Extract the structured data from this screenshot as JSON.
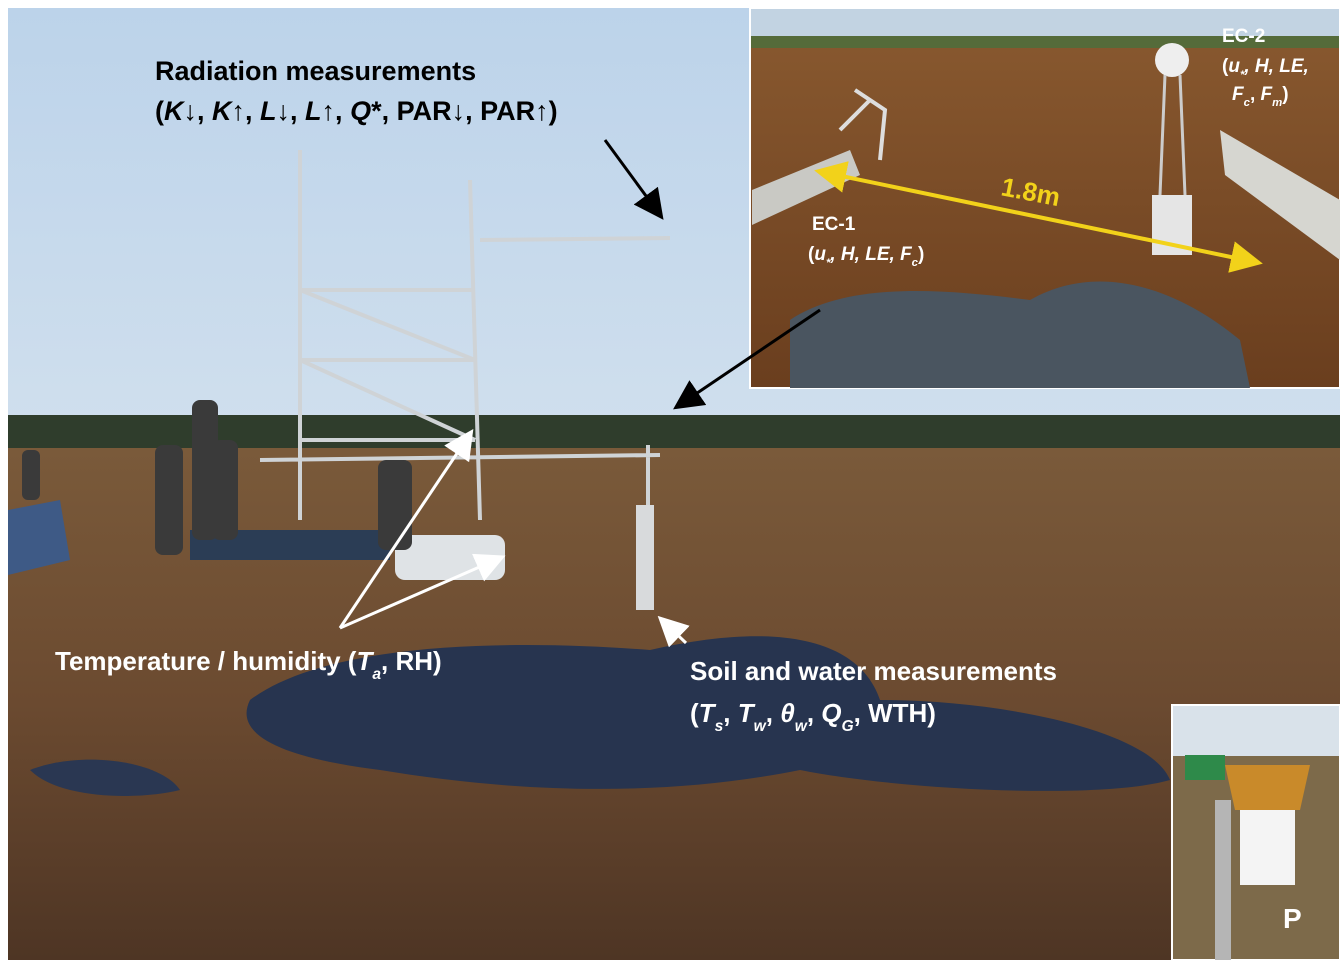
{
  "radiation": {
    "title": "Radiation measurements",
    "detail": [
      "(",
      "K",
      "↓, ",
      "K",
      "↑, ",
      "L",
      "↓, ",
      "L",
      "↑, ",
      "Q",
      "*, PAR↓, PAR↑)"
    ]
  },
  "temperature": [
    "Temperature / humidity (",
    "T",
    "a",
    ", RH)"
  ],
  "soil": {
    "title": "Soil and water measurements",
    "detail": [
      "(",
      "T",
      "s",
      ", ",
      "T",
      "w",
      ", ",
      "θ",
      "w",
      ", ",
      "Q",
      "G",
      ", WTH)"
    ]
  },
  "ec1": {
    "title": "EC-1",
    "detail": [
      "(",
      "u",
      "*",
      ", H, LE, ",
      "F",
      "c",
      ")"
    ]
  },
  "ec2": {
    "title": "EC-2",
    "line2": [
      "(",
      "u",
      "*",
      ", H, LE,"
    ],
    "line3": [
      "F",
      "c",
      ", ",
      "F",
      "m",
      ")"
    ]
  },
  "distance": "1.8m",
  "precip": "P"
}
